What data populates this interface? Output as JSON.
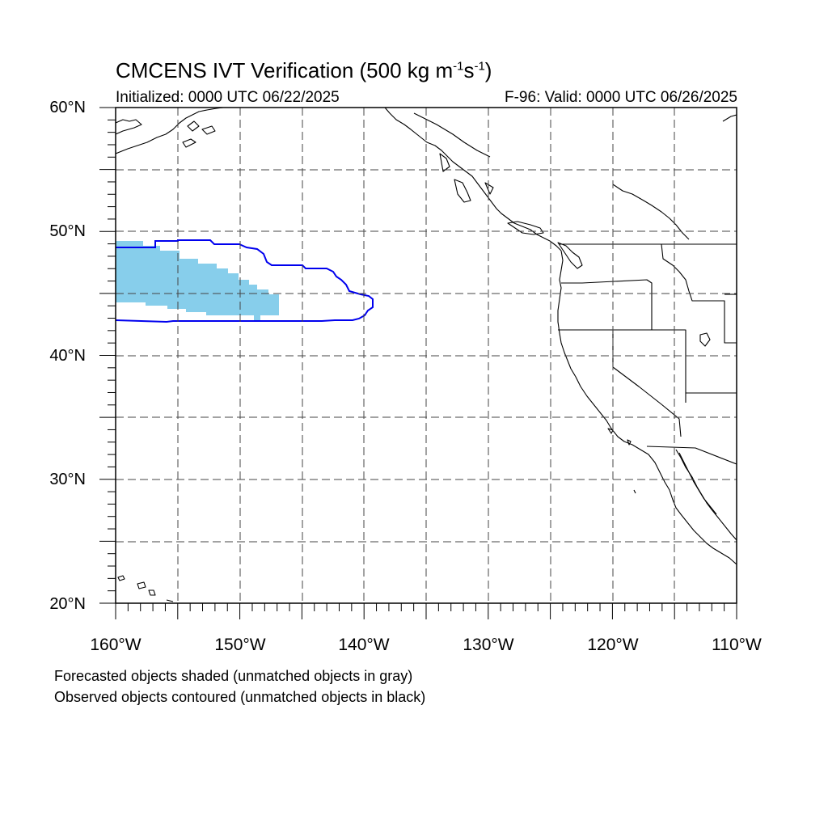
{
  "title": {
    "main_prefix": "CMCENS IVT Verification (500 kg m",
    "exp1": "-1",
    "middle": "s",
    "exp2": "-1",
    "suffix": ")"
  },
  "subtitle_left": "Initialized: 0000 UTC 06/22/2025",
  "subtitle_right": "F-96: Valid: 0000 UTC 06/26/2025",
  "map": {
    "lat_labels": [
      "60°N",
      "50°N",
      "40°N",
      "30°N",
      "20°N"
    ],
    "lon_labels": [
      "160°W",
      "150°W",
      "140°W",
      "130°W",
      "120°W",
      "110°W"
    ],
    "gridlines": "dashed",
    "colors": {
      "forecast_shade": "#87ceeb",
      "observed_contour": "#0000ee",
      "coastline": "#000000"
    }
  },
  "legend": {
    "line1": "Forecasted objects shaded (unmatched objects in gray)",
    "line2": "Observed objects contoured (unmatched objects in black)"
  }
}
